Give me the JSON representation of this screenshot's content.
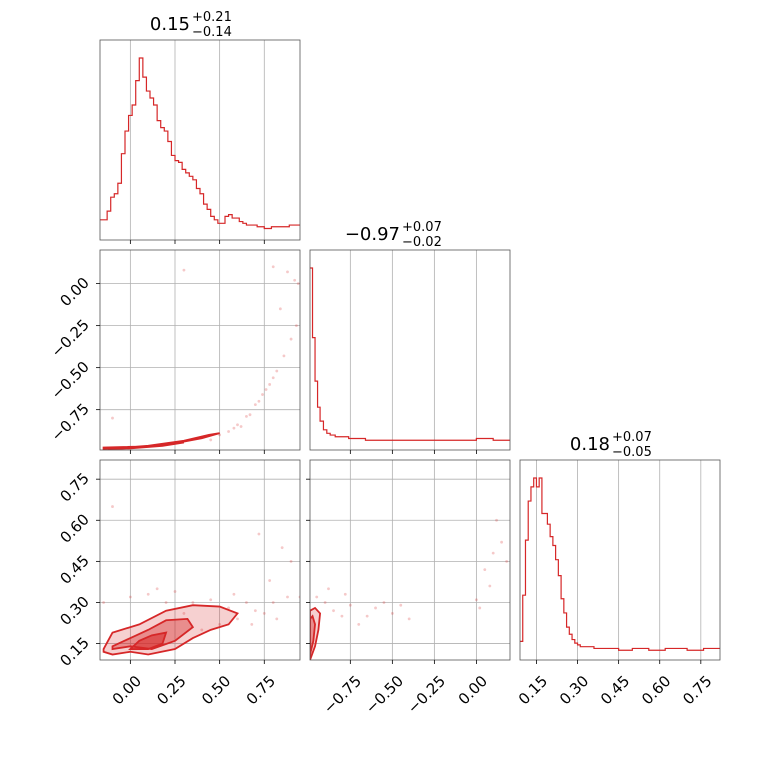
{
  "chart_data": {
    "type": "corner",
    "grid": true,
    "color": "#d62728",
    "parameters": [
      {
        "range": [
          -0.17,
          0.95
        ],
        "ticks": [
          "0.00",
          "0.25",
          "0.50",
          "0.75"
        ],
        "tick_values": [
          0,
          0.25,
          0.5,
          0.75
        ]
      },
      {
        "range": [
          -0.99,
          0.2
        ],
        "ticks": [
          "0.00",
          "−0.25",
          "−0.50",
          "−0.75"
        ],
        "tick_values": [
          0,
          -0.25,
          -0.5,
          -0.75
        ]
      },
      {
        "range": [
          0.09,
          0.82
        ],
        "ticks": [
          "0.75",
          "0.60",
          "0.45",
          "0.30",
          "0.15"
        ],
        "tick_values": [
          0.75,
          0.6,
          0.45,
          0.3,
          0.15
        ]
      }
    ],
    "titles": [
      {
        "param": 0,
        "median": "0.15",
        "plus": "+0.21",
        "minus": "−0.14"
      },
      {
        "param": 1,
        "median": "−0.97",
        "plus": "+0.07",
        "minus": "−0.02"
      },
      {
        "param": 2,
        "median": "0.18",
        "plus": "+0.07",
        "minus": "−0.05"
      }
    ],
    "marginals": [
      {
        "param": 0,
        "bin_edges": [
          -0.17,
          -0.13,
          -0.11,
          -0.09,
          -0.07,
          -0.05,
          -0.03,
          -0.01,
          0.01,
          0.03,
          0.05,
          0.07,
          0.09,
          0.11,
          0.13,
          0.15,
          0.17,
          0.19,
          0.21,
          0.23,
          0.25,
          0.27,
          0.29,
          0.31,
          0.33,
          0.35,
          0.37,
          0.39,
          0.41,
          0.43,
          0.45,
          0.47,
          0.49,
          0.51,
          0.53,
          0.55,
          0.57,
          0.59,
          0.61,
          0.63,
          0.65,
          0.71,
          0.75,
          0.79,
          0.83,
          0.89,
          0.95
        ],
        "counts": [
          0.07,
          0.12,
          0.2,
          0.22,
          0.28,
          0.45,
          0.58,
          0.67,
          0.73,
          0.87,
          1.0,
          0.89,
          0.81,
          0.77,
          0.73,
          0.64,
          0.6,
          0.58,
          0.52,
          0.44,
          0.41,
          0.4,
          0.36,
          0.34,
          0.32,
          0.3,
          0.25,
          0.22,
          0.16,
          0.13,
          0.09,
          0.07,
          0.05,
          0.05,
          0.09,
          0.1,
          0.08,
          0.08,
          0.06,
          0.05,
          0.04,
          0.03,
          0.02,
          0.03,
          0.03,
          0.04
        ]
      },
      {
        "param": 1,
        "bin_edges": [
          -0.99,
          -0.975,
          -0.96,
          -0.945,
          -0.93,
          -0.91,
          -0.89,
          -0.87,
          -0.84,
          -0.8,
          -0.76,
          -0.72,
          -0.66,
          -0.6,
          -0.5,
          -0.4,
          -0.3,
          -0.2,
          -0.1,
          0.0,
          0.1,
          0.2
        ],
        "counts": [
          1.0,
          0.6,
          0.35,
          0.2,
          0.12,
          0.07,
          0.05,
          0.04,
          0.03,
          0.03,
          0.02,
          0.02,
          0.01,
          0.01,
          0.01,
          0.01,
          0.01,
          0.01,
          0.01,
          0.02,
          0.01
        ]
      },
      {
        "param": 2,
        "bin_edges": [
          0.09,
          0.1,
          0.11,
          0.12,
          0.13,
          0.14,
          0.15,
          0.16,
          0.17,
          0.18,
          0.19,
          0.2,
          0.21,
          0.22,
          0.23,
          0.24,
          0.25,
          0.26,
          0.27,
          0.28,
          0.29,
          0.3,
          0.31,
          0.33,
          0.36,
          0.4,
          0.45,
          0.5,
          0.56,
          0.62,
          0.7,
          0.76,
          0.82
        ],
        "counts": [
          0.06,
          0.32,
          0.63,
          0.85,
          0.93,
          0.98,
          0.93,
          0.98,
          0.78,
          0.78,
          0.72,
          0.65,
          0.6,
          0.52,
          0.43,
          0.3,
          0.22,
          0.14,
          0.1,
          0.07,
          0.05,
          0.04,
          0.03,
          0.03,
          0.02,
          0.02,
          0.01,
          0.02,
          0.01,
          0.02,
          0.01,
          0.02
        ]
      }
    ],
    "joints": [
      {
        "x_param": 0,
        "y_param": 1,
        "points": [
          [
            0.55,
            -0.88
          ],
          [
            0.6,
            -0.84
          ],
          [
            0.65,
            -0.79
          ],
          [
            0.7,
            -0.72
          ],
          [
            0.74,
            -0.66
          ],
          [
            0.78,
            -0.6
          ],
          [
            0.82,
            -0.52
          ],
          [
            0.86,
            -0.43
          ],
          [
            0.9,
            -0.33
          ],
          [
            0.93,
            -0.25
          ],
          [
            0.84,
            -0.15
          ],
          [
            0.88,
            0.07
          ],
          [
            0.92,
            0.02
          ],
          [
            0.94,
            0.0
          ],
          [
            0.62,
            -0.85
          ],
          [
            0.67,
            -0.78
          ],
          [
            0.45,
            -0.93
          ],
          [
            0.5,
            -0.9
          ],
          [
            0.8,
            0.1
          ],
          [
            0.3,
            0.08
          ],
          [
            -0.1,
            -0.8
          ],
          [
            0.58,
            -0.86
          ],
          [
            0.72,
            -0.7
          ],
          [
            0.76,
            -0.63
          ],
          [
            0.8,
            -0.56
          ]
        ],
        "contours": [
          [
            [
              -0.15,
              -0.975
            ],
            [
              0.05,
              -0.97
            ],
            [
              0.25,
              -0.95
            ],
            [
              0.4,
              -0.92
            ],
            [
              0.5,
              -0.89
            ],
            [
              0.44,
              -0.9
            ],
            [
              0.3,
              -0.935
            ],
            [
              0.1,
              -0.965
            ],
            [
              -0.15,
              -0.985
            ]
          ],
          [
            [
              -0.12,
              -0.975
            ],
            [
              0.05,
              -0.975
            ],
            [
              0.2,
              -0.96
            ],
            [
              0.3,
              -0.945
            ],
            [
              0.18,
              -0.965
            ],
            [
              0.0,
              -0.98
            ],
            [
              -0.12,
              -0.985
            ]
          ]
        ]
      },
      {
        "x_param": 0,
        "y_param": 2,
        "points": [
          [
            0.35,
            0.3
          ],
          [
            0.45,
            0.31
          ],
          [
            0.55,
            0.28
          ],
          [
            0.6,
            0.24
          ],
          [
            0.7,
            0.27
          ],
          [
            0.8,
            0.3
          ],
          [
            0.85,
            0.5
          ],
          [
            0.88,
            0.32
          ],
          [
            -0.1,
            0.65
          ],
          [
            0.0,
            0.32
          ],
          [
            0.1,
            0.33
          ],
          [
            0.2,
            0.3
          ],
          [
            0.5,
            0.22
          ],
          [
            0.65,
            0.3
          ],
          [
            0.75,
            0.26
          ],
          [
            0.9,
            0.45
          ],
          [
            0.95,
            0.32
          ],
          [
            -0.15,
            0.3
          ],
          [
            0.25,
            0.34
          ],
          [
            0.4,
            0.2
          ],
          [
            0.72,
            0.55
          ],
          [
            0.68,
            0.22
          ],
          [
            0.58,
            0.33
          ],
          [
            0.82,
            0.24
          ],
          [
            0.78,
            0.38
          ],
          [
            0.3,
            0.26
          ],
          [
            0.15,
            0.35
          ]
        ],
        "contours": [
          [
            [
              -0.15,
              0.13
            ],
            [
              -0.1,
              0.19
            ],
            [
              0.05,
              0.22
            ],
            [
              0.2,
              0.27
            ],
            [
              0.35,
              0.29
            ],
            [
              0.5,
              0.285
            ],
            [
              0.6,
              0.26
            ],
            [
              0.55,
              0.22
            ],
            [
              0.45,
              0.2
            ],
            [
              0.35,
              0.17
            ],
            [
              0.25,
              0.13
            ],
            [
              0.1,
              0.11
            ],
            [
              0.0,
              0.12
            ],
            [
              -0.1,
              0.11
            ],
            [
              -0.15,
              0.12
            ]
          ],
          [
            [
              -0.1,
              0.14
            ],
            [
              0.0,
              0.17
            ],
            [
              0.1,
              0.2
            ],
            [
              0.2,
              0.235
            ],
            [
              0.32,
              0.24
            ],
            [
              0.35,
              0.21
            ],
            [
              0.25,
              0.16
            ],
            [
              0.12,
              0.13
            ],
            [
              0.0,
              0.14
            ],
            [
              -0.1,
              0.13
            ]
          ],
          [
            [
              0.0,
              0.13
            ],
            [
              0.05,
              0.16
            ],
            [
              0.12,
              0.18
            ],
            [
              0.2,
              0.19
            ],
            [
              0.18,
              0.15
            ],
            [
              0.1,
              0.13
            ],
            [
              0.0,
              0.13
            ]
          ]
        ]
      },
      {
        "x_param": 1,
        "y_param": 2,
        "points": [
          [
            -0.9,
            0.3
          ],
          [
            -0.85,
            0.27
          ],
          [
            -0.8,
            0.25
          ],
          [
            -0.75,
            0.29
          ],
          [
            -0.7,
            0.22
          ],
          [
            -0.6,
            0.28
          ],
          [
            -0.5,
            0.26
          ],
          [
            -0.4,
            0.24
          ],
          [
            0.0,
            0.31
          ],
          [
            0.05,
            0.42
          ],
          [
            0.1,
            0.48
          ],
          [
            0.15,
            0.52
          ],
          [
            0.12,
            0.6
          ],
          [
            0.18,
            0.45
          ],
          [
            -0.88,
            0.35
          ],
          [
            -0.95,
            0.32
          ],
          [
            -0.65,
            0.25
          ],
          [
            -0.55,
            0.3
          ],
          [
            0.02,
            0.28
          ],
          [
            0.08,
            0.36
          ],
          [
            -0.78,
            0.33
          ],
          [
            -0.45,
            0.29
          ]
        ],
        "contours": [
          [
            [
              -0.99,
              0.09
            ],
            [
              -0.96,
              0.14
            ],
            [
              -0.94,
              0.2
            ],
            [
              -0.93,
              0.26
            ],
            [
              -0.96,
              0.28
            ],
            [
              -0.99,
              0.27
            ]
          ],
          [
            [
              -0.99,
              0.11
            ],
            [
              -0.97,
              0.16
            ],
            [
              -0.96,
              0.22
            ],
            [
              -0.975,
              0.25
            ],
            [
              -0.99,
              0.24
            ]
          ]
        ]
      }
    ]
  }
}
